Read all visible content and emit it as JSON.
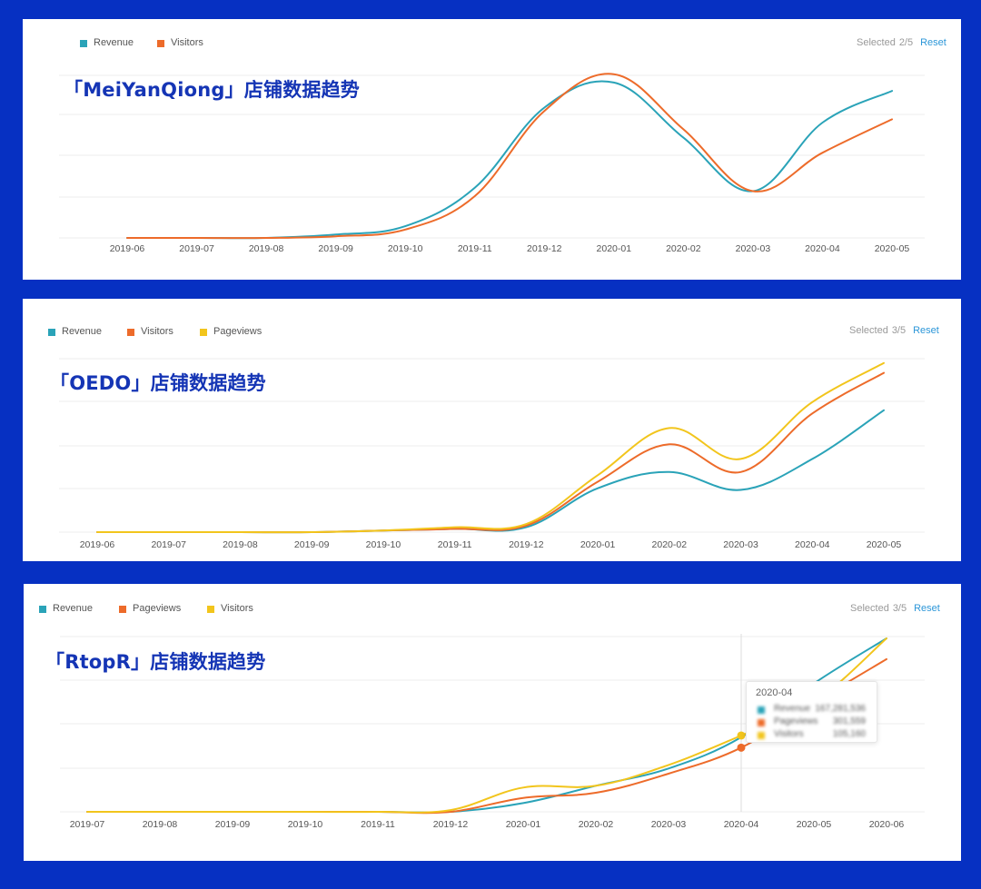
{
  "colors": {
    "frame_bg": "#0630c2",
    "teal": "#2aa3b8",
    "orange": "#ed6b2a",
    "yellow": "#f2c51c",
    "title_blue": "#1535b5",
    "reset": "#2b96d8",
    "grid": "#eeeeee"
  },
  "selected_label": "Selected",
  "reset_label": "Reset",
  "chart_data": [
    {
      "type": "line",
      "title": "「MeiYanQiong」店铺数据趋势",
      "selected_count": "2/5",
      "grid": true,
      "legend_position": "top-left",
      "categories": [
        "2019-06",
        "2019-07",
        "2019-08",
        "2019-09",
        "2019-10",
        "2019-11",
        "2019-12",
        "2020-01",
        "2020-02",
        "2020-03",
        "2020-04",
        "2020-05"
      ],
      "ylim": [
        0,
        100
      ],
      "series": [
        {
          "name": "Revenue",
          "color": "#2aa3b8",
          "values": [
            0,
            0,
            0,
            2,
            7,
            30,
            78,
            93,
            60,
            28,
            69,
            88
          ]
        },
        {
          "name": "Visitors",
          "color": "#ed6b2a",
          "values": [
            0,
            0,
            0,
            1,
            5,
            25,
            76,
            98,
            65,
            28,
            51,
            71
          ]
        }
      ]
    },
    {
      "type": "line",
      "title": "「OEDO」店铺数据趋势",
      "selected_count": "3/5",
      "grid": true,
      "legend_position": "top-left",
      "categories": [
        "2019-06",
        "2019-07",
        "2019-08",
        "2019-09",
        "2019-10",
        "2019-11",
        "2019-12",
        "2020-01",
        "2020-02",
        "2020-03",
        "2020-04",
        "2020-05"
      ],
      "ylim": [
        0,
        100
      ],
      "series": [
        {
          "name": "Revenue",
          "color": "#2aa3b8",
          "values": [
            0,
            0,
            0,
            0,
            1,
            2,
            3,
            27,
            37,
            26,
            45,
            75
          ]
        },
        {
          "name": "Visitors",
          "color": "#ed6b2a",
          "values": [
            0,
            0,
            0,
            0,
            1,
            2,
            4,
            31,
            54,
            37,
            73,
            98
          ]
        },
        {
          "name": "Pageviews",
          "color": "#f2c51c",
          "values": [
            0,
            0,
            0,
            0,
            1,
            3,
            5,
            35,
            64,
            45,
            80,
            104
          ]
        }
      ]
    },
    {
      "type": "line",
      "title": "「RtopR」店铺数据趋势",
      "selected_count": "3/5",
      "grid": true,
      "legend_position": "top-left",
      "categories": [
        "2019-07",
        "2019-08",
        "2019-09",
        "2019-10",
        "2019-11",
        "2019-12",
        "2020-01",
        "2020-02",
        "2020-03",
        "2020-04",
        "2020-05",
        "2020-06"
      ],
      "ylim": [
        0,
        100
      ],
      "series": [
        {
          "name": "Revenue",
          "color": "#2aa3b8",
          "values": [
            0,
            0,
            0,
            0,
            0,
            0,
            5,
            15,
            25,
            43,
            74,
            100
          ]
        },
        {
          "name": "Pageviews",
          "color": "#ed6b2a",
          "values": [
            0,
            0,
            0,
            0,
            0,
            0,
            8,
            11,
            22,
            37,
            63,
            88
          ]
        },
        {
          "name": "Visitors",
          "color": "#f2c51c",
          "values": [
            0,
            0,
            0,
            0,
            0,
            1,
            14,
            15,
            27,
            44,
            63,
            100
          ]
        }
      ],
      "tooltip": {
        "category": "2020-04",
        "rows": [
          {
            "name": "Revenue",
            "value": "167,281,536",
            "color": "#2aa3b8"
          },
          {
            "name": "Pageviews",
            "value": "301,559",
            "color": "#ed6b2a"
          },
          {
            "name": "Visitors",
            "value": "105,160",
            "color": "#f2c51c"
          }
        ]
      }
    }
  ]
}
